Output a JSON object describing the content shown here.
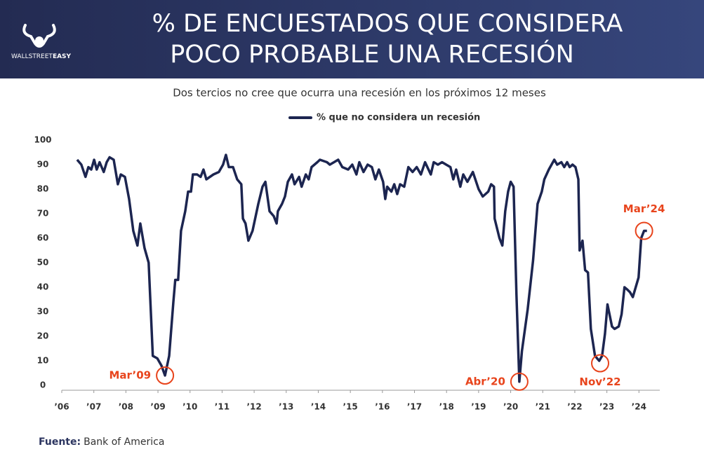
{
  "header": {
    "title_lines": [
      "% DE ENCUESTADOS QUE CONSIDERA",
      "POCO PROBABLE UNA RECESIÓN"
    ],
    "logo_text": [
      "WALLSTREET",
      "EASY"
    ]
  },
  "chart_data": {
    "type": "line",
    "subtitle": "Dos tercios no cree que ocurra una recesión en los próximos 12 meses",
    "x": [
      2006.48,
      2006.61,
      2006.74,
      2006.83,
      2006.92,
      2007.01,
      2007.09,
      2007.18,
      2007.31,
      2007.4,
      2007.49,
      2007.62,
      2007.75,
      2007.84,
      2007.97,
      2008.1,
      2008.23,
      2008.36,
      2008.45,
      2008.58,
      2008.71,
      2008.84,
      2008.98,
      2009.11,
      2009.22,
      2009.35,
      2009.48,
      2009.54,
      2009.63,
      2009.72,
      2009.85,
      2009.94,
      2010.03,
      2010.09,
      2010.22,
      2010.33,
      2010.42,
      2010.51,
      2010.73,
      2010.9,
      2011.03,
      2011.12,
      2011.21,
      2011.34,
      2011.47,
      2011.6,
      2011.65,
      2011.73,
      2011.82,
      2011.95,
      2012.13,
      2012.26,
      2012.35,
      2012.48,
      2012.61,
      2012.7,
      2012.74,
      2012.87,
      2012.96,
      2013.05,
      2013.18,
      2013.26,
      2013.4,
      2013.48,
      2013.61,
      2013.7,
      2013.79,
      2013.97,
      2014.05,
      2014.27,
      2014.36,
      2014.49,
      2014.62,
      2014.75,
      2014.93,
      2015.06,
      2015.19,
      2015.28,
      2015.41,
      2015.54,
      2015.67,
      2015.78,
      2015.89,
      2016.02,
      2016.09,
      2016.15,
      2016.28,
      2016.37,
      2016.46,
      2016.55,
      2016.68,
      2016.81,
      2016.94,
      2017.07,
      2017.2,
      2017.33,
      2017.51,
      2017.6,
      2017.73,
      2017.86,
      2017.99,
      2018.12,
      2018.21,
      2018.3,
      2018.43,
      2018.52,
      2018.65,
      2018.82,
      2019.0,
      2019.13,
      2019.3,
      2019.39,
      2019.48,
      2019.5,
      2019.65,
      2019.74,
      2019.83,
      2019.92,
      2020.0,
      2020.09,
      2020.18,
      2020.27,
      2020.35,
      2020.53,
      2020.7,
      2020.84,
      2020.97,
      2021.05,
      2021.19,
      2021.36,
      2021.45,
      2021.58,
      2021.67,
      2021.76,
      2021.84,
      2021.93,
      2022.02,
      2022.11,
      2022.15,
      2022.24,
      2022.32,
      2022.41,
      2022.5,
      2022.63,
      2022.76,
      2022.85,
      2022.94,
      2023.02,
      2023.16,
      2023.24,
      2023.37,
      2023.46,
      2023.55,
      2023.64,
      2023.72,
      2023.81,
      2023.99,
      2024.07,
      2024.16,
      2024.25
    ],
    "series": [
      {
        "name": "% que no considera un recesión",
        "color": "#1c2550",
        "values": [
          92,
          90,
          85,
          89,
          88,
          92,
          88,
          91,
          87,
          91,
          93,
          92,
          82,
          86,
          85,
          76,
          63,
          57,
          66,
          56,
          50,
          12,
          11,
          8,
          4,
          12,
          34,
          43,
          43,
          63,
          71,
          79,
          79,
          86,
          86,
          85,
          88,
          84,
          86,
          87,
          90,
          94,
          89,
          89,
          84,
          82,
          68,
          66,
          59,
          63,
          74,
          81,
          83,
          71,
          69,
          66,
          71,
          74,
          77,
          83,
          86,
          82,
          85,
          81,
          86,
          84,
          89,
          91,
          92,
          91,
          90,
          91,
          92,
          89,
          88,
          90,
          86,
          91,
          87,
          90,
          89,
          84,
          88,
          83,
          76,
          81,
          79,
          82,
          78,
          82,
          81,
          89,
          87,
          89,
          86,
          91,
          86,
          91,
          90,
          91,
          90,
          89,
          84,
          88,
          81,
          86,
          83,
          87,
          80,
          77,
          79,
          82,
          81,
          68,
          60,
          57,
          71,
          79,
          83,
          81,
          37,
          1.5,
          14,
          31,
          51,
          74,
          79,
          84,
          88,
          92,
          90,
          91,
          89,
          91,
          89,
          90,
          89,
          84,
          55,
          59,
          47,
          46,
          23,
          12,
          10,
          12,
          21,
          33,
          24,
          23,
          24,
          29,
          40,
          39,
          38,
          36,
          44,
          60,
          63,
          63
        ]
      }
    ],
    "xlim": [
      2006,
      2024.65
    ],
    "xticks": [
      {
        "value": 2006,
        "label": "’06"
      },
      {
        "value": 2007,
        "label": "’07"
      },
      {
        "value": 2008,
        "label": "’08"
      },
      {
        "value": 2009,
        "label": "’09"
      },
      {
        "value": 2010,
        "label": "’10"
      },
      {
        "value": 2011,
        "label": "’11"
      },
      {
        "value": 2012,
        "label": "’12"
      },
      {
        "value": 2013,
        "label": "’13"
      },
      {
        "value": 2014,
        "label": "’14"
      },
      {
        "value": 2015,
        "label": "’15"
      },
      {
        "value": 2016,
        "label": "’16"
      },
      {
        "value": 2017,
        "label": "’17"
      },
      {
        "value": 2018,
        "label": "’18"
      },
      {
        "value": 2019,
        "label": "’19"
      },
      {
        "value": 2020,
        "label": "’20"
      },
      {
        "value": 2021,
        "label": "’21"
      },
      {
        "value": 2022,
        "label": "’22"
      },
      {
        "value": 2023,
        "label": "’23"
      },
      {
        "value": 2024,
        "label": "’24"
      }
    ],
    "ylim": [
      -2,
      100
    ],
    "yticks": [
      0,
      10,
      20,
      30,
      40,
      50,
      60,
      70,
      80,
      90,
      100
    ],
    "annotations": [
      {
        "text": "Mar’09",
        "x": 2009.22,
        "y": 4,
        "color": "#e8441c",
        "side": "left"
      },
      {
        "text": "Abr’20",
        "x": 2020.27,
        "y": 1.5,
        "color": "#e8441c",
        "side": "left"
      },
      {
        "text": "Nov’22",
        "x": 2022.79,
        "y": 9,
        "color": "#e8441c",
        "side": "below"
      },
      {
        "text": "Mar’24",
        "x": 2024.16,
        "y": 63,
        "color": "#e8441c",
        "side": "above"
      }
    ],
    "source_label": "Fuente:",
    "source": "Bank of America"
  }
}
